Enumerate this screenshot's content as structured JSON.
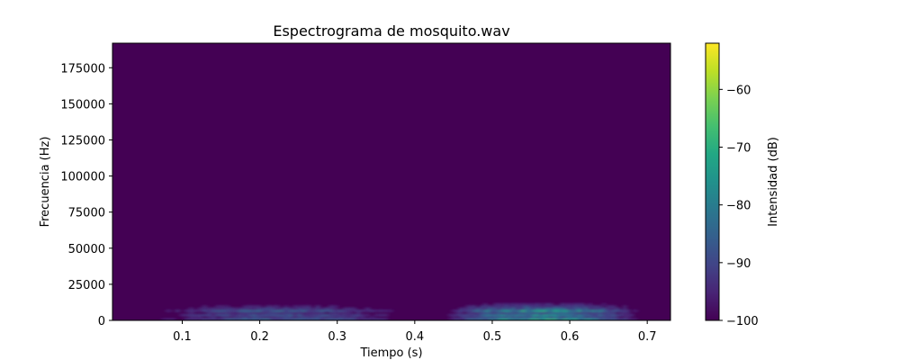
{
  "chart_data": {
    "type": "heatmap",
    "title": "Espectrograma de mosquito.wav",
    "xlabel": "Tiempo (s)",
    "ylabel": "Frecuencia (Hz)",
    "xlim": [
      0.01,
      0.73
    ],
    "ylim": [
      0,
      192000
    ],
    "x_ticks": [
      0.1,
      0.2,
      0.3,
      0.4,
      0.5,
      0.6,
      0.7
    ],
    "x_tick_labels": [
      "0.1",
      "0.2",
      "0.3",
      "0.4",
      "0.5",
      "0.6",
      "0.7"
    ],
    "y_ticks": [
      0,
      25000,
      50000,
      75000,
      100000,
      125000,
      150000,
      175000
    ],
    "y_tick_labels": [
      "0",
      "25000",
      "50000",
      "75000",
      "100000",
      "125000",
      "150000",
      "175000"
    ],
    "colorbar": {
      "label": "Intensidad (dB)",
      "colormap": "viridis",
      "range": [
        -100,
        -52
      ],
      "ticks": [
        -100,
        -90,
        -80,
        -70,
        -60
      ],
      "tick_labels": [
        "−100",
        "−90",
        "−80",
        "−70",
        "−60"
      ]
    },
    "background_db": -100,
    "energy_regions": [
      {
        "t_start": 0.05,
        "t_end": 0.4,
        "f_low": 0,
        "f_high": 12000,
        "peak_db": -80
      },
      {
        "t_start": 0.43,
        "t_end": 0.7,
        "f_low": 0,
        "f_high": 12000,
        "peak_db": -62
      }
    ]
  }
}
